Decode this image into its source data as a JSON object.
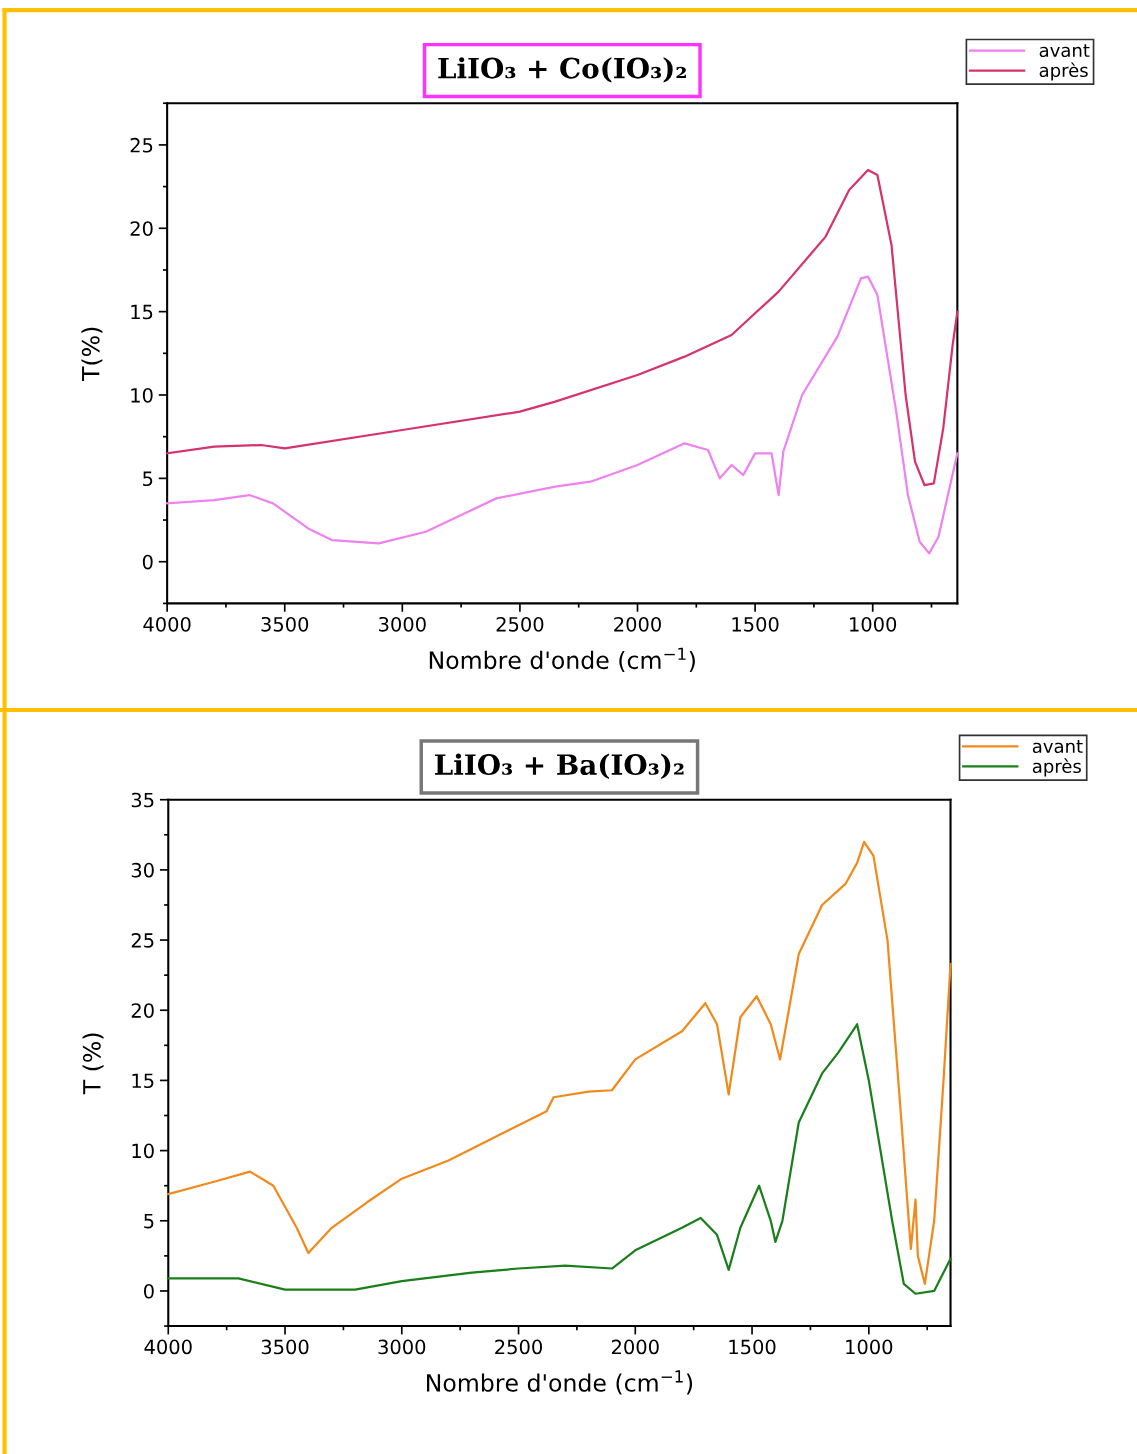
{
  "chart_data": [
    {
      "type": "line",
      "title": "LiIO₃ + Co(IO₃)₂",
      "xlabel": "Nombre d'onde (cm$^{−1}$)",
      "ylabel": "T(%)",
      "xlim": [
        4000,
        640
      ],
      "ylim": [
        -2.5,
        27.5
      ],
      "xticks": [
        4000,
        3500,
        3000,
        2500,
        2000,
        1500,
        1000
      ],
      "yticks": [
        0,
        5,
        10,
        15,
        20,
        25
      ],
      "legend": "top right",
      "grid": false,
      "series": [
        {
          "name": "avant",
          "color": "#ee82ee",
          "x": [
            4000,
            3800,
            3650,
            3550,
            3400,
            3300,
            3100,
            2900,
            2600,
            2350,
            2200,
            2000,
            1800,
            1700,
            1650,
            1600,
            1550,
            1500,
            1430,
            1400,
            1380,
            1300,
            1150,
            1050,
            1020,
            980,
            900,
            850,
            800,
            760,
            720,
            680,
            640
          ],
          "values": [
            3.5,
            3.7,
            4.0,
            3.5,
            2.0,
            1.3,
            1.1,
            1.8,
            3.8,
            4.5,
            4.8,
            5.8,
            7.1,
            6.7,
            5.0,
            5.8,
            5.2,
            6.5,
            6.5,
            4.0,
            6.6,
            10.0,
            13.5,
            17.0,
            17.1,
            16,
            9,
            4,
            1.2,
            0.5,
            1.5,
            4,
            6.5
          ]
        },
        {
          "name": "après",
          "color": "#d6336c",
          "x": [
            4000,
            3800,
            3600,
            3500,
            3000,
            2500,
            2350,
            2000,
            1800,
            1600,
            1400,
            1200,
            1100,
            1020,
            980,
            920,
            860,
            820,
            780,
            740,
            700,
            660,
            640
          ],
          "values": [
            6.5,
            6.9,
            7.0,
            6.8,
            7.9,
            9.0,
            9.6,
            11.2,
            12.3,
            13.6,
            16.2,
            19.5,
            22.3,
            23.5,
            23.2,
            19,
            10,
            6,
            4.6,
            4.7,
            8,
            13,
            15
          ]
        }
      ]
    },
    {
      "type": "line",
      "title": "LiIO₃ + Ba(IO₃)₂",
      "xlabel": "Nombre d'onde (cm$^{−1}$)",
      "ylabel": "T (%)",
      "xlim": [
        4000,
        650
      ],
      "ylim": [
        -2.5,
        35
      ],
      "xticks": [
        4000,
        3500,
        3000,
        2500,
        2000,
        1500,
        1000
      ],
      "yticks": [
        0,
        5,
        10,
        15,
        20,
        25,
        30,
        35
      ],
      "legend": "top right",
      "grid": false,
      "series": [
        {
          "name": "avant",
          "color": "#f08a1c",
          "x": [
            4000,
            3800,
            3650,
            3550,
            3450,
            3400,
            3300,
            3150,
            3000,
            2800,
            2500,
            2380,
            2350,
            2200,
            2100,
            2000,
            1800,
            1700,
            1650,
            1600,
            1550,
            1480,
            1420,
            1380,
            1300,
            1200,
            1100,
            1050,
            1020,
            980,
            920,
            860,
            820,
            800,
            790,
            760,
            720,
            680,
            650
          ],
          "values": [
            6.9,
            7.8,
            8.5,
            7.5,
            4.5,
            2.7,
            4.5,
            6.3,
            8.0,
            9.3,
            11.8,
            12.8,
            13.8,
            14.2,
            14.3,
            16.5,
            18.5,
            20.5,
            19,
            14,
            19.5,
            21,
            19,
            16.5,
            24,
            27.5,
            29,
            30.5,
            32,
            31,
            25,
            12,
            3,
            6.5,
            2.5,
            0.5,
            5,
            15,
            23.3
          ]
        },
        {
          "name": "après",
          "color": "#1a7f1a",
          "x": [
            4000,
            3700,
            3500,
            3200,
            3000,
            2700,
            2500,
            2300,
            2100,
            2000,
            1800,
            1720,
            1650,
            1600,
            1550,
            1470,
            1420,
            1400,
            1370,
            1300,
            1200,
            1130,
            1050,
            1000,
            900,
            850,
            800,
            720,
            650
          ],
          "values": [
            0.9,
            0.9,
            0.1,
            0.1,
            0.7,
            1.3,
            1.6,
            1.8,
            1.6,
            2.9,
            4.5,
            5.2,
            4,
            1.5,
            4.5,
            7.5,
            5,
            3.5,
            5,
            12,
            15.5,
            17,
            19,
            15,
            5,
            0.5,
            -0.2,
            0,
            2.3
          ]
        }
      ]
    }
  ]
}
